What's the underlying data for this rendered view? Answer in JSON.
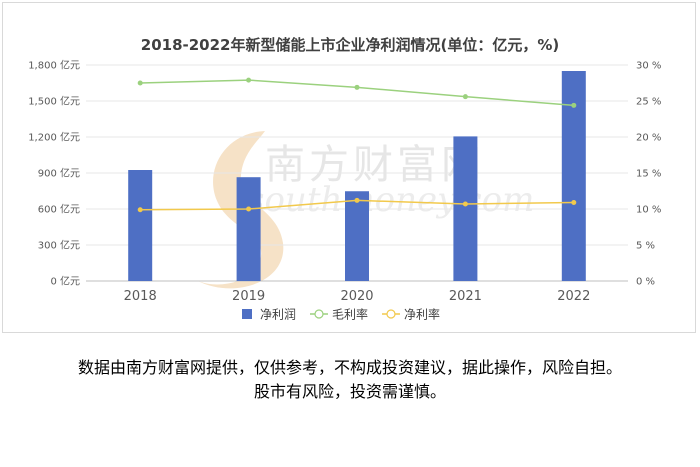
{
  "chart_data": {
    "type": "bar",
    "title": "2018-2022年新型储能上市企业净利润情况(单位：亿元，%)",
    "categories": [
      "2018",
      "2019",
      "2020",
      "2021",
      "2022"
    ],
    "series": [
      {
        "name": "净利润",
        "kind": "bar",
        "axis": "left",
        "color": "#4e6fc4",
        "values": [
          925,
          865,
          748,
          1205,
          1750
        ]
      },
      {
        "name": "毛利率",
        "kind": "line",
        "axis": "right",
        "color": "#9bd17e",
        "values": [
          27.5,
          27.9,
          26.9,
          25.6,
          24.4
        ]
      },
      {
        "name": "净利率",
        "kind": "line",
        "axis": "right",
        "color": "#f2c94c",
        "values": [
          9.9,
          10.0,
          11.2,
          10.7,
          10.9
        ]
      }
    ],
    "y_left": {
      "ticks": [
        "0 亿元",
        "300 亿元",
        "600 亿元",
        "900 亿元",
        "1,200 亿元",
        "1,500 亿元",
        "1,800 亿元"
      ],
      "ylim": [
        0,
        1800
      ]
    },
    "y_right": {
      "ticks": [
        "0 %",
        "5 %",
        "10 %",
        "15 %",
        "20 %",
        "25 %",
        "30 %"
      ],
      "ylim": [
        0,
        30
      ]
    },
    "grid": true,
    "legend_position": "bottom"
  },
  "watermark": {
    "cn": "南方财富网",
    "en": "southmoney.com"
  },
  "disclaimer": {
    "line1": "数据由南方财富网提供，仅供参考，不构成投资建议，据此操作，风险自担。",
    "line2": "股市有风险，投资需谨慎。"
  }
}
